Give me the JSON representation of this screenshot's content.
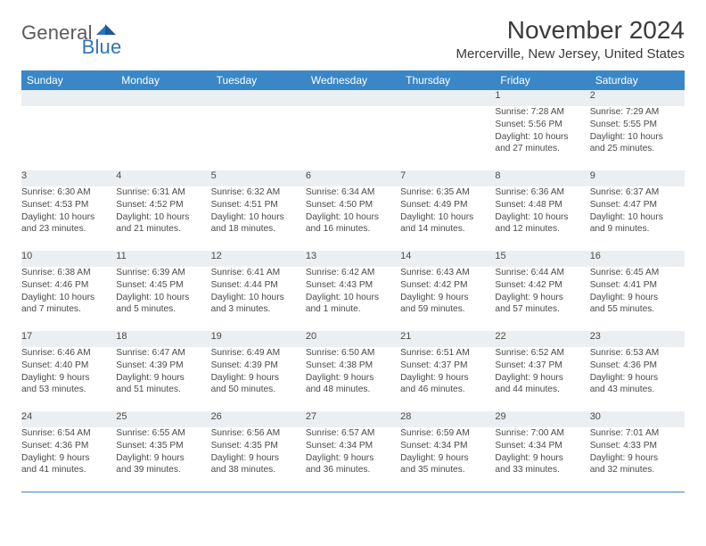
{
  "logo": {
    "text1": "General",
    "text2": "Blue"
  },
  "title": "November 2024",
  "location": "Mercerville, New Jersey, United States",
  "colors": {
    "header_bg": "#3a87c7",
    "header_text": "#ffffff",
    "daynum_bg": "#eceff1",
    "text": "#4a4a4a",
    "rule": "#3a87c7",
    "logo_gray": "#5a5a5a",
    "logo_blue": "#2e75b6"
  },
  "weekdays": [
    "Sunday",
    "Monday",
    "Tuesday",
    "Wednesday",
    "Thursday",
    "Friday",
    "Saturday"
  ],
  "weeks": [
    [
      null,
      null,
      null,
      null,
      null,
      {
        "n": "1",
        "sr": "Sunrise: 7:28 AM",
        "ss": "Sunset: 5:56 PM",
        "d1": "Daylight: 10 hours",
        "d2": "and 27 minutes."
      },
      {
        "n": "2",
        "sr": "Sunrise: 7:29 AM",
        "ss": "Sunset: 5:55 PM",
        "d1": "Daylight: 10 hours",
        "d2": "and 25 minutes."
      }
    ],
    [
      {
        "n": "3",
        "sr": "Sunrise: 6:30 AM",
        "ss": "Sunset: 4:53 PM",
        "d1": "Daylight: 10 hours",
        "d2": "and 23 minutes."
      },
      {
        "n": "4",
        "sr": "Sunrise: 6:31 AM",
        "ss": "Sunset: 4:52 PM",
        "d1": "Daylight: 10 hours",
        "d2": "and 21 minutes."
      },
      {
        "n": "5",
        "sr": "Sunrise: 6:32 AM",
        "ss": "Sunset: 4:51 PM",
        "d1": "Daylight: 10 hours",
        "d2": "and 18 minutes."
      },
      {
        "n": "6",
        "sr": "Sunrise: 6:34 AM",
        "ss": "Sunset: 4:50 PM",
        "d1": "Daylight: 10 hours",
        "d2": "and 16 minutes."
      },
      {
        "n": "7",
        "sr": "Sunrise: 6:35 AM",
        "ss": "Sunset: 4:49 PM",
        "d1": "Daylight: 10 hours",
        "d2": "and 14 minutes."
      },
      {
        "n": "8",
        "sr": "Sunrise: 6:36 AM",
        "ss": "Sunset: 4:48 PM",
        "d1": "Daylight: 10 hours",
        "d2": "and 12 minutes."
      },
      {
        "n": "9",
        "sr": "Sunrise: 6:37 AM",
        "ss": "Sunset: 4:47 PM",
        "d1": "Daylight: 10 hours",
        "d2": "and 9 minutes."
      }
    ],
    [
      {
        "n": "10",
        "sr": "Sunrise: 6:38 AM",
        "ss": "Sunset: 4:46 PM",
        "d1": "Daylight: 10 hours",
        "d2": "and 7 minutes."
      },
      {
        "n": "11",
        "sr": "Sunrise: 6:39 AM",
        "ss": "Sunset: 4:45 PM",
        "d1": "Daylight: 10 hours",
        "d2": "and 5 minutes."
      },
      {
        "n": "12",
        "sr": "Sunrise: 6:41 AM",
        "ss": "Sunset: 4:44 PM",
        "d1": "Daylight: 10 hours",
        "d2": "and 3 minutes."
      },
      {
        "n": "13",
        "sr": "Sunrise: 6:42 AM",
        "ss": "Sunset: 4:43 PM",
        "d1": "Daylight: 10 hours",
        "d2": "and 1 minute."
      },
      {
        "n": "14",
        "sr": "Sunrise: 6:43 AM",
        "ss": "Sunset: 4:42 PM",
        "d1": "Daylight: 9 hours",
        "d2": "and 59 minutes."
      },
      {
        "n": "15",
        "sr": "Sunrise: 6:44 AM",
        "ss": "Sunset: 4:42 PM",
        "d1": "Daylight: 9 hours",
        "d2": "and 57 minutes."
      },
      {
        "n": "16",
        "sr": "Sunrise: 6:45 AM",
        "ss": "Sunset: 4:41 PM",
        "d1": "Daylight: 9 hours",
        "d2": "and 55 minutes."
      }
    ],
    [
      {
        "n": "17",
        "sr": "Sunrise: 6:46 AM",
        "ss": "Sunset: 4:40 PM",
        "d1": "Daylight: 9 hours",
        "d2": "and 53 minutes."
      },
      {
        "n": "18",
        "sr": "Sunrise: 6:47 AM",
        "ss": "Sunset: 4:39 PM",
        "d1": "Daylight: 9 hours",
        "d2": "and 51 minutes."
      },
      {
        "n": "19",
        "sr": "Sunrise: 6:49 AM",
        "ss": "Sunset: 4:39 PM",
        "d1": "Daylight: 9 hours",
        "d2": "and 50 minutes."
      },
      {
        "n": "20",
        "sr": "Sunrise: 6:50 AM",
        "ss": "Sunset: 4:38 PM",
        "d1": "Daylight: 9 hours",
        "d2": "and 48 minutes."
      },
      {
        "n": "21",
        "sr": "Sunrise: 6:51 AM",
        "ss": "Sunset: 4:37 PM",
        "d1": "Daylight: 9 hours",
        "d2": "and 46 minutes."
      },
      {
        "n": "22",
        "sr": "Sunrise: 6:52 AM",
        "ss": "Sunset: 4:37 PM",
        "d1": "Daylight: 9 hours",
        "d2": "and 44 minutes."
      },
      {
        "n": "23",
        "sr": "Sunrise: 6:53 AM",
        "ss": "Sunset: 4:36 PM",
        "d1": "Daylight: 9 hours",
        "d2": "and 43 minutes."
      }
    ],
    [
      {
        "n": "24",
        "sr": "Sunrise: 6:54 AM",
        "ss": "Sunset: 4:36 PM",
        "d1": "Daylight: 9 hours",
        "d2": "and 41 minutes."
      },
      {
        "n": "25",
        "sr": "Sunrise: 6:55 AM",
        "ss": "Sunset: 4:35 PM",
        "d1": "Daylight: 9 hours",
        "d2": "and 39 minutes."
      },
      {
        "n": "26",
        "sr": "Sunrise: 6:56 AM",
        "ss": "Sunset: 4:35 PM",
        "d1": "Daylight: 9 hours",
        "d2": "and 38 minutes."
      },
      {
        "n": "27",
        "sr": "Sunrise: 6:57 AM",
        "ss": "Sunset: 4:34 PM",
        "d1": "Daylight: 9 hours",
        "d2": "and 36 minutes."
      },
      {
        "n": "28",
        "sr": "Sunrise: 6:59 AM",
        "ss": "Sunset: 4:34 PM",
        "d1": "Daylight: 9 hours",
        "d2": "and 35 minutes."
      },
      {
        "n": "29",
        "sr": "Sunrise: 7:00 AM",
        "ss": "Sunset: 4:34 PM",
        "d1": "Daylight: 9 hours",
        "d2": "and 33 minutes."
      },
      {
        "n": "30",
        "sr": "Sunrise: 7:01 AM",
        "ss": "Sunset: 4:33 PM",
        "d1": "Daylight: 9 hours",
        "d2": "and 32 minutes."
      }
    ]
  ]
}
